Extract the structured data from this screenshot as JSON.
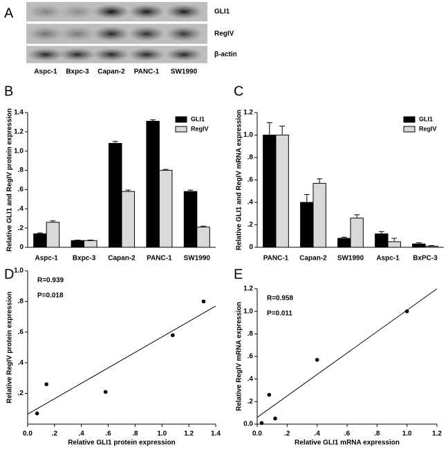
{
  "blot": {
    "panel": "A",
    "rows": [
      "GLI1",
      "RegIV",
      "β-actin"
    ],
    "lanes": [
      "Aspc-1",
      "Bxpc-3",
      "Capan-2",
      "PANC-1",
      "SW1990"
    ]
  },
  "chart_data": [
    {
      "type": "bar",
      "panel": "B",
      "y_label": "Relative GLI1 and RegIV protein expression",
      "categories": [
        "Aspc-1",
        "Bxpc-3",
        "Capan-2",
        "PANC-1",
        "SW1990"
      ],
      "series": [
        {
          "name": "GLI1",
          "color": "#000000",
          "values": [
            0.14,
            0.07,
            1.08,
            1.31,
            0.58
          ],
          "errors": [
            0.01,
            0.005,
            0.02,
            0.015,
            0.015
          ]
        },
        {
          "name": "RegIV",
          "color": "#d9d9d9",
          "values": [
            0.26,
            0.07,
            0.58,
            0.8,
            0.21
          ],
          "errors": [
            0.015,
            0.005,
            0.015,
            0.01,
            0.01
          ]
        }
      ],
      "ylim": [
        0,
        1.4
      ],
      "yticks": [
        0,
        {
          "value": 0.2,
          "label": ".2"
        },
        {
          "value": 0.4,
          "label": ".4"
        },
        {
          "value": 0.6,
          "label": ".6"
        },
        {
          "value": 0.8,
          "label": ".8"
        },
        {
          "value": 1.0,
          "label": "1.0"
        },
        1.2,
        1.4
      ],
      "legend": "top-right"
    },
    {
      "type": "bar",
      "panel": "C",
      "y_label": "Relative GLI1 and RegIV mRNA expression",
      "categories": [
        "PANC-1",
        "Capan-2",
        "SW1990",
        "Aspc-1",
        "BxPC-3"
      ],
      "series": [
        {
          "name": "GLI1",
          "color": "#000000",
          "values": [
            1.0,
            0.4,
            0.08,
            0.12,
            0.03
          ],
          "errors": [
            0.11,
            0.07,
            0.01,
            0.02,
            0.01
          ]
        },
        {
          "name": "RegIV",
          "color": "#d9d9d9",
          "values": [
            1.0,
            0.57,
            0.26,
            0.05,
            0.01
          ],
          "errors": [
            0.08,
            0.04,
            0.03,
            0.03,
            0.005
          ]
        }
      ],
      "ylim": [
        0,
        1.2
      ],
      "yticks": [
        0,
        {
          "value": 0.2,
          "label": ".2"
        },
        {
          "value": 0.4,
          "label": ".4"
        },
        {
          "value": 0.6,
          "label": ".6"
        },
        {
          "value": 0.8,
          "label": ".8"
        },
        {
          "value": 1.0,
          "label": "1.0"
        },
        1.2
      ],
      "legend": "top-right"
    },
    {
      "type": "scatter",
      "panel": "D",
      "x_label": "Relative GLI1 protein expression",
      "y_label": "Relative RegIV protein expression",
      "annotations": [
        "R=0.939",
        "P=0.018"
      ],
      "x": [
        0.14,
        0.07,
        1.08,
        1.31,
        0.58
      ],
      "values": [
        0.26,
        0.07,
        0.58,
        0.8,
        0.21
      ],
      "color": "#000000",
      "fit_line": {
        "x": [
          0,
          1.4
        ],
        "y": [
          0.065,
          0.77
        ]
      },
      "xlim": [
        0,
        1.4
      ],
      "ylim": [
        0,
        1.0
      ],
      "xticks": [
        {
          "value": 0,
          "label": "0.0"
        },
        {
          "value": 0.2,
          "label": ".2"
        },
        {
          "value": 0.4,
          "label": ".4"
        },
        {
          "value": 0.6,
          "label": ".6"
        },
        {
          "value": 0.8,
          "label": ".8"
        },
        {
          "value": 1.0,
          "label": "1.0"
        },
        1.2,
        1.4
      ],
      "yticks": [
        {
          "value": 0.2,
          "label": ".2"
        },
        {
          "value": 0.4,
          "label": ".4"
        },
        {
          "value": 0.6,
          "label": ".6"
        },
        {
          "value": 0.8,
          "label": ".8"
        },
        {
          "value": 1.0,
          "label": "1.0"
        }
      ]
    },
    {
      "type": "scatter",
      "panel": "E",
      "x_label": "Relative GLI1 mRNA expression",
      "y_label": "Relative RegIV mRNA expression",
      "annotations": [
        "R=0.958",
        "P=0.011"
      ],
      "x": [
        0.03,
        0.08,
        0.12,
        0.4,
        1.0
      ],
      "values": [
        0.01,
        0.26,
        0.05,
        0.57,
        1.0
      ],
      "color": "#000000",
      "fit_line": {
        "x": [
          0,
          1.2
        ],
        "y": [
          0.06,
          1.2
        ]
      },
      "xlim": [
        0,
        1.2
      ],
      "ylim": [
        0,
        1.2
      ],
      "xticks": [
        {
          "value": 0,
          "label": "0.0"
        },
        {
          "value": 0.2,
          "label": ".2"
        },
        {
          "value": 0.4,
          "label": ".4"
        },
        {
          "value": 0.6,
          "label": ".6"
        },
        {
          "value": 0.8,
          "label": ".8"
        },
        {
          "value": 1.0,
          "label": "1.0"
        },
        1.2
      ],
      "yticks": [
        {
          "value": 0,
          "label": "0.0"
        },
        {
          "value": 0.2,
          "label": ".2"
        },
        {
          "value": 0.4,
          "label": ".4"
        },
        {
          "value": 0.6,
          "label": ".6"
        },
        {
          "value": 0.8,
          "label": ".8"
        },
        {
          "value": 1.0,
          "label": "1.0"
        },
        1.2
      ]
    }
  ]
}
